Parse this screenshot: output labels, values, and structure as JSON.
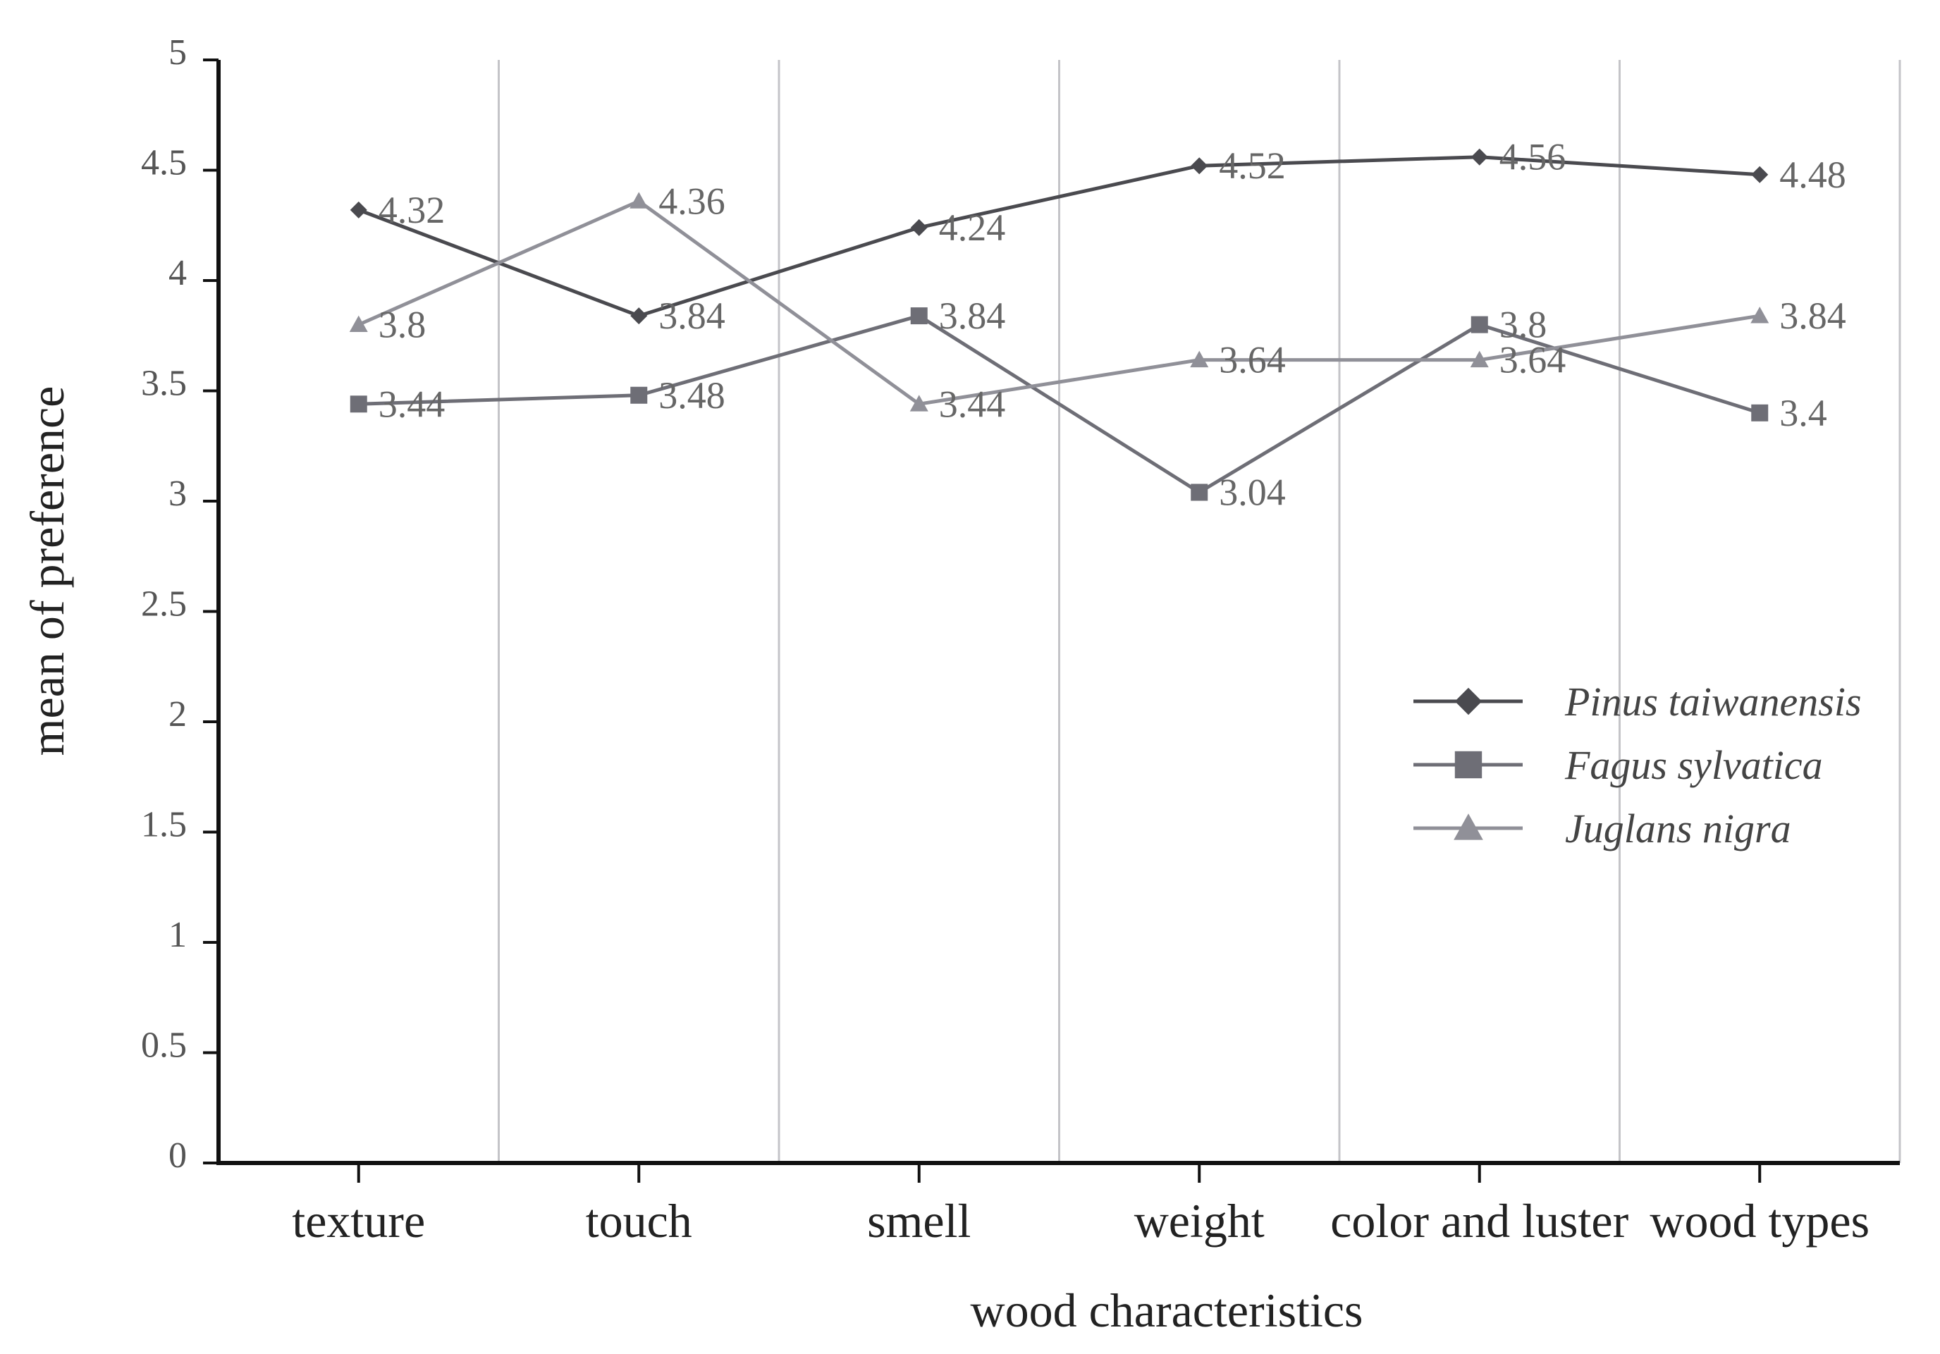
{
  "chart_data": {
    "type": "line",
    "title": "",
    "xlabel": "wood characteristics",
    "ylabel": "mean of preference",
    "categories": [
      "texture",
      "touch",
      "smell",
      "weight",
      "color and luster",
      "wood types"
    ],
    "ylim": [
      0,
      5
    ],
    "yticks": [
      "0",
      "0.5",
      "1",
      "1.5",
      "2",
      "2.5",
      "3",
      "3.5",
      "4",
      "4.5",
      "5"
    ],
    "grid": "vertical",
    "legend_position": "right",
    "series": [
      {
        "name": "Pinus taiwanensis",
        "values": [
          4.32,
          3.84,
          4.24,
          4.52,
          4.56,
          4.48
        ],
        "labels": [
          "4.32",
          "3.84",
          "4.24",
          "4.52",
          "4.56",
          "4.48"
        ],
        "marker": "diamond",
        "color": "#4a4a4f"
      },
      {
        "name": "Fagus sylvatica",
        "values": [
          3.44,
          3.48,
          3.84,
          3.04,
          3.8,
          3.4
        ],
        "labels": [
          "3.44",
          "3.48",
          "3.84",
          "3.04",
          "3.8",
          "3.4"
        ],
        "marker": "square",
        "color": "#6e6e76"
      },
      {
        "name": "Juglans nigra",
        "values": [
          3.8,
          4.36,
          3.44,
          3.64,
          3.64,
          3.84
        ],
        "labels": [
          "3.8",
          "4.36",
          "3.44",
          "3.64",
          "3.64",
          "3.84"
        ],
        "marker": "triangle",
        "color": "#909098"
      }
    ]
  }
}
